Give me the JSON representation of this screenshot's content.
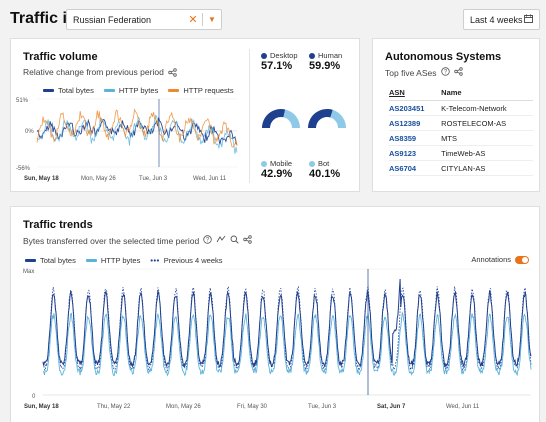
{
  "header": {
    "title": "Traffic in",
    "country": "Russian Federation",
    "range": "Last 4 weeks"
  },
  "volume": {
    "title": "Traffic volume",
    "subtitle": "Relative change from previous period",
    "legend": [
      {
        "name": "Total bytes",
        "color": "#1f3f8f"
      },
      {
        "name": "HTTP bytes",
        "color": "#5bb3dc"
      },
      {
        "name": "HTTP requests",
        "color": "#ef8a2c"
      }
    ],
    "y_ticks": [
      "51%",
      "0%",
      "-56%"
    ],
    "x_ticks": [
      "Sun, May 18",
      "Mon, May 26",
      "Tue, Jun 3",
      "Wed, Jun 11"
    ],
    "stats": {
      "desktop_label": "Desktop",
      "desktop_value": "57.1%",
      "human_label": "Human",
      "human_value": "59.9%",
      "mobile_label": "Mobile",
      "mobile_value": "42.9%",
      "bot_label": "Bot",
      "bot_value": "40.1%"
    }
  },
  "asns": {
    "title": "Autonomous Systems",
    "subtitle": "Top five ASes",
    "col_asn": "ASN",
    "col_name": "Name",
    "rows": [
      {
        "asn": "AS203451",
        "name": "K-Telecom-Network"
      },
      {
        "asn": "AS12389",
        "name": "ROSTELECOM-AS"
      },
      {
        "asn": "AS8359",
        "name": "MTS"
      },
      {
        "asn": "AS9123",
        "name": "TimeWeb-AS"
      },
      {
        "asn": "AS6704",
        "name": "CITYLAN-AS"
      }
    ]
  },
  "trends": {
    "title": "Traffic trends",
    "subtitle": "Bytes transferred over the selected time period",
    "legend": [
      {
        "name": "Total bytes",
        "color": "#1f3f8f"
      },
      {
        "name": "HTTP bytes",
        "color": "#5bb3dc"
      },
      {
        "name": "Previous 4 weeks",
        "color": "#1f3f8f"
      }
    ],
    "annotations_label": "Annotations",
    "y_ticks": [
      "Max",
      "0"
    ],
    "x_ticks": [
      "Sun, May 18",
      "Thu, May 22",
      "Mon, May 26",
      "Fri, May 30",
      "Tue, Jun 3",
      "Sat, Jun 7",
      "Wed, Jun 11"
    ]
  },
  "chart_data": [
    {
      "type": "line",
      "title": "Traffic volume",
      "ylabel": "Relative change from previous period",
      "ylim": [
        -56,
        51
      ],
      "series": [
        {
          "name": "Total bytes",
          "color": "#1f3f8f"
        },
        {
          "name": "HTTP bytes",
          "color": "#5bb3dc"
        },
        {
          "name": "HTTP requests",
          "color": "#ef8a2c"
        }
      ]
    },
    {
      "type": "line",
      "title": "Traffic trends",
      "ylim": [
        "0",
        "Max"
      ],
      "series": [
        {
          "name": "Total bytes",
          "color": "#1f3f8f"
        },
        {
          "name": "HTTP bytes",
          "color": "#5bb3dc"
        },
        {
          "name": "Previous 4 weeks",
          "color": "#1f3f8f"
        }
      ]
    },
    {
      "type": "pie",
      "categories": [
        "Desktop",
        "Mobile"
      ],
      "values": [
        57.1,
        42.9
      ],
      "colors": [
        "#1f3f8f",
        "#8ec9e8"
      ]
    },
    {
      "type": "pie",
      "categories": [
        "Human",
        "Bot"
      ],
      "values": [
        59.9,
        40.1
      ],
      "colors": [
        "#1f3f8f",
        "#8ec9e8"
      ]
    }
  ]
}
